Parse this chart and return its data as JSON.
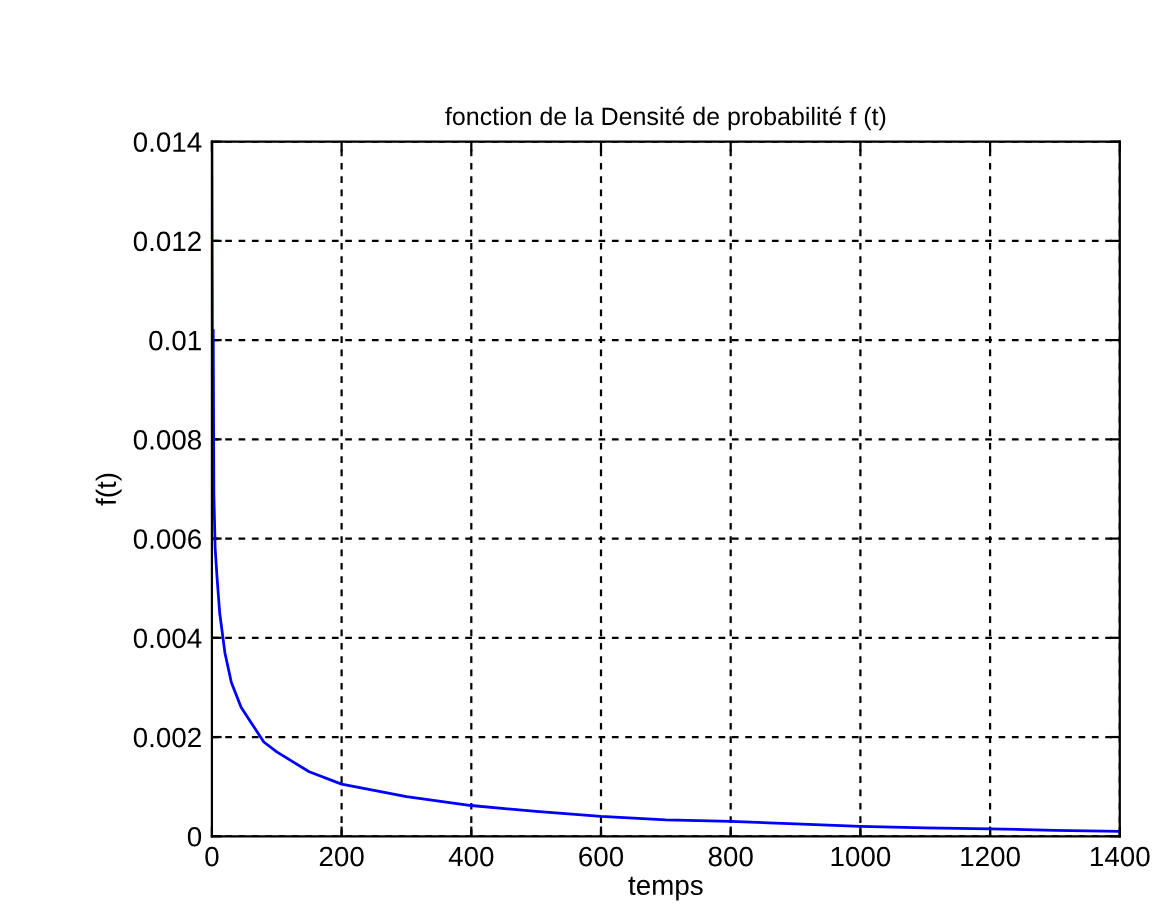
{
  "chart_data": {
    "type": "line",
    "title": "fonction de la Densité de probabilité f (t)",
    "xlabel": "temps",
    "ylabel": "f(t)",
    "series": [
      {
        "color": "#0000ff",
        "x": [
          0,
          1,
          2,
          3,
          5,
          8,
          12,
          20,
          30,
          45,
          60,
          80,
          100,
          150,
          200,
          300,
          400,
          500,
          600,
          700,
          800,
          900,
          1000,
          1100,
          1200,
          1300,
          1400
        ],
        "values": [
          0.014,
          0.0085,
          0.0102,
          0.0069,
          0.0058,
          0.0052,
          0.0045,
          0.0037,
          0.0031,
          0.0026,
          0.0023,
          0.0019,
          0.0017,
          0.0013,
          0.00105,
          0.0008,
          0.00062,
          0.0005,
          0.0004,
          0.00033,
          0.0003,
          0.00025,
          0.0002,
          0.00017,
          0.00015,
          0.00012,
          0.0001
        ]
      }
    ],
    "xlim": [
      0,
      1400
    ],
    "xticks": [
      0,
      200,
      400,
      600,
      800,
      1000,
      1200,
      1400
    ],
    "ylim": [
      0,
      0.014
    ],
    "yticks": [
      0,
      0.002,
      0.004,
      0.006,
      0.008,
      0.01,
      0.012,
      0.014
    ],
    "grid": true,
    "line_style": "solid",
    "marker": "none"
  }
}
